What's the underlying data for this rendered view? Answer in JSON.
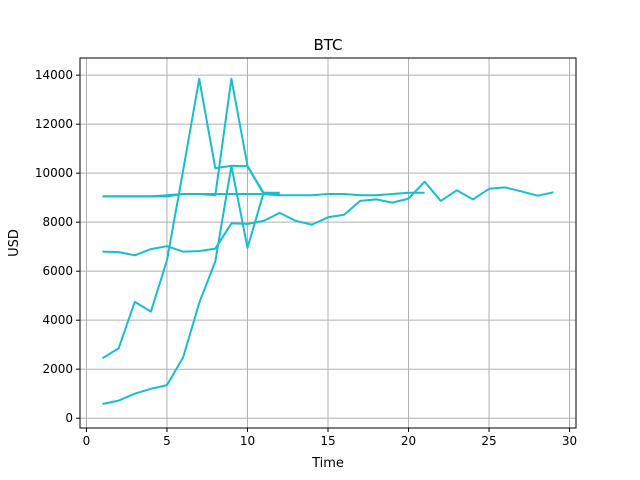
{
  "chart_data": {
    "type": "line",
    "title": "BTC",
    "xlabel": "Time",
    "ylabel": "USD",
    "xlim": [
      -0.4,
      30.4
    ],
    "ylim": [
      -400,
      14700
    ],
    "xticks": [
      0,
      5,
      10,
      15,
      20,
      25,
      30
    ],
    "yticks": [
      0,
      2000,
      4000,
      6000,
      8000,
      10000,
      12000,
      14000
    ],
    "grid": true,
    "legend": "none",
    "color": "#17becf",
    "series": [
      {
        "x": [
          1,
          2,
          3,
          4,
          5,
          6,
          7,
          8,
          9,
          10,
          11,
          12
        ],
        "y": [
          580,
          720,
          1000,
          1200,
          1350,
          2480,
          4700,
          6400,
          10300,
          10280,
          9200,
          9200
        ]
      },
      {
        "x": [
          1,
          2,
          3,
          4,
          5,
          6,
          7,
          8,
          9,
          10,
          11,
          12
        ],
        "y": [
          2450,
          2850,
          4750,
          4350,
          6450,
          10100,
          13850,
          10200,
          10300,
          6950,
          9200,
          9150
        ]
      },
      {
        "x": [
          1,
          2,
          3,
          4,
          5,
          6,
          7,
          8,
          9,
          10,
          11,
          12
        ],
        "y": [
          9050,
          9050,
          9050,
          9050,
          9050,
          9150,
          9150,
          9100,
          13850,
          10300,
          9150,
          9100
        ]
      },
      {
        "x": [
          1,
          2,
          3,
          4,
          5,
          6,
          7,
          8,
          9,
          10,
          11,
          12,
          13,
          14,
          15,
          16,
          17,
          18,
          19,
          20,
          21
        ],
        "y": [
          9050,
          9050,
          9050,
          9050,
          9100,
          9150,
          9150,
          9150,
          9150,
          9150,
          9150,
          9100,
          9100,
          9100,
          9150,
          9150,
          9100,
          9100,
          9150,
          9200,
          9200
        ]
      },
      {
        "x": [
          1,
          2,
          3,
          4,
          5,
          6,
          7,
          8,
          9,
          10,
          11,
          12,
          13,
          14,
          15,
          16,
          17,
          18,
          19,
          20,
          21,
          22,
          23,
          24,
          25,
          26,
          27,
          28,
          29
        ],
        "y": [
          6800,
          6780,
          6650,
          6900,
          7020,
          6800,
          6820,
          6920,
          7950,
          7930,
          8050,
          8380,
          8050,
          7900,
          8200,
          8300,
          8870,
          8930,
          8800,
          8960,
          9650,
          8870,
          9300,
          8930,
          9360,
          9420,
          9260,
          9080,
          9220
        ]
      }
    ]
  }
}
